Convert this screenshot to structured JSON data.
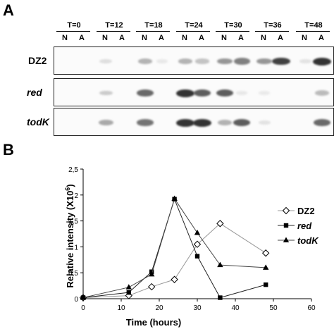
{
  "figure": {
    "panel_a_letter": "A",
    "panel_b_letter": "B",
    "timepoints": [
      "T=0",
      "T=12",
      "T=18",
      "T=24",
      "T=30",
      "T=36",
      "T=48"
    ],
    "lane_n": "N",
    "lane_a": "A",
    "blot_rows": [
      {
        "label": "DZ2",
        "italic": false,
        "bands": [
          0,
          0,
          0.15,
          0,
          0.45,
          0.05,
          0.45,
          0.35,
          0.6,
          0.7,
          0.6,
          0.95,
          0.1,
          1.0
        ]
      },
      {
        "label": "red",
        "italic": true,
        "bands": [
          0,
          0,
          0.3,
          0,
          0.8,
          0,
          1.0,
          0.85,
          0.85,
          0.05,
          0.03,
          0,
          0,
          0.4
        ]
      },
      {
        "label": "todK",
        "italic": true,
        "bands": [
          0,
          0,
          0.5,
          0,
          0.75,
          0,
          1.0,
          1.0,
          0.45,
          0.85,
          0.1,
          0,
          0,
          0.8
        ]
      }
    ]
  },
  "chart_data": {
    "type": "line",
    "xlabel": "Time (hours)",
    "ylabel": "Relative intensity (X10",
    "ylabel_sup": "6",
    "ylabel_end": ")",
    "xlim": [
      0,
      60
    ],
    "ylim": [
      0,
      2.5
    ],
    "xticks": [
      "0",
      "10",
      "20",
      "30",
      "40",
      "50",
      "60"
    ],
    "yticks": [
      "0",
      "0,5",
      "1",
      "1,5",
      "2",
      "2,5"
    ],
    "legend_placement": "right",
    "series": [
      {
        "name": "DZ2",
        "marker": "diamond-open",
        "x": [
          0,
          12,
          18,
          24,
          30,
          36,
          48
        ],
        "y": [
          0.02,
          0.06,
          0.23,
          0.37,
          1.05,
          1.45,
          0.88
        ]
      },
      {
        "name": "red",
        "marker": "square-filled",
        "x": [
          0,
          12,
          18,
          24,
          30,
          36,
          48
        ],
        "y": [
          0.02,
          0.12,
          0.52,
          1.92,
          0.82,
          0.02,
          0.27
        ]
      },
      {
        "name": "todK",
        "marker": "triangle-filled",
        "x": [
          0,
          12,
          18,
          24,
          30,
          36,
          48
        ],
        "y": [
          0.02,
          0.22,
          0.47,
          1.93,
          1.27,
          0.65,
          0.6
        ]
      }
    ]
  }
}
